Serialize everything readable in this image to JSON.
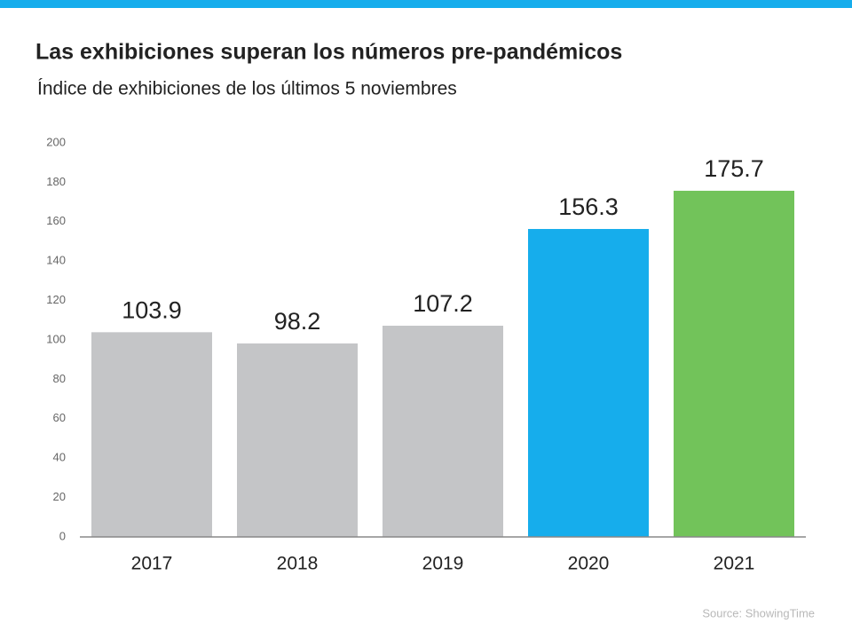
{
  "chart_data": {
    "type": "bar",
    "title": "Las exhibiciones superan los números pre-pandémicos",
    "subtitle": "Índice de exhibiciones de los últimos 5 noviembres",
    "categories": [
      "2017",
      "2018",
      "2019",
      "2020",
      "2021"
    ],
    "values": [
      103.9,
      98.2,
      107.2,
      156.3,
      175.7
    ],
    "colors": [
      "#c4c5c7",
      "#c4c5c7",
      "#c4c5c7",
      "#16adec",
      "#72c35a"
    ],
    "ylim": [
      0,
      200
    ],
    "yticks": [
      0,
      20,
      40,
      60,
      80,
      100,
      120,
      140,
      160,
      180,
      200
    ],
    "grid": false,
    "source": "Source: ShowingTime"
  }
}
